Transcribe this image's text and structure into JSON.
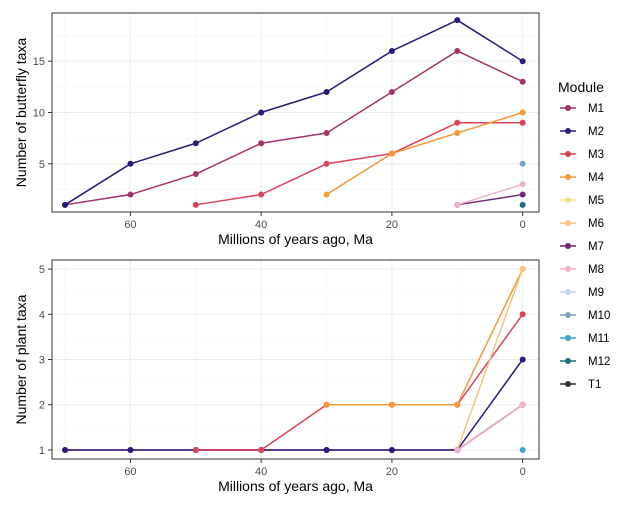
{
  "chart_data": [
    {
      "type": "line",
      "ylabel": "Number of butterfly taxa",
      "xlabel": "Millions of years ago, Ma",
      "xlim": [
        72,
        -2.5
      ],
      "ylim": [
        0.3,
        19.7
      ],
      "xticks": [
        60,
        40,
        20,
        0
      ],
      "yticks": [
        5,
        10,
        15
      ],
      "grid": true,
      "series": [
        {
          "name": "M1",
          "color": "#a3336a",
          "x": [
            70,
            60,
            50,
            40,
            30,
            20,
            10,
            0
          ],
          "y": [
            1,
            2,
            4,
            7,
            8,
            12,
            16,
            13
          ]
        },
        {
          "name": "M2",
          "color": "#2a1b7a",
          "x": [
            70,
            60,
            50,
            40,
            30,
            20,
            10,
            0
          ],
          "y": [
            1,
            5,
            7,
            10,
            12,
            16,
            19,
            15
          ]
        },
        {
          "name": "M3",
          "color": "#db4458",
          "x": [
            50,
            40,
            30,
            20,
            10,
            0
          ],
          "y": [
            1,
            2,
            5,
            6,
            9,
            9
          ]
        },
        {
          "name": "M4",
          "color": "#f5993a",
          "x": [
            30,
            20,
            10,
            0
          ],
          "y": [
            2,
            6,
            8,
            10
          ]
        },
        {
          "name": "M5",
          "color": "#f5dc86",
          "x": [],
          "y": []
        },
        {
          "name": "M6",
          "color": "#f7c283",
          "x": [],
          "y": []
        },
        {
          "name": "M7",
          "color": "#6e2a6e",
          "x": [
            10,
            0
          ],
          "y": [
            1,
            2
          ]
        },
        {
          "name": "M8",
          "color": "#f0b3cc",
          "x": [
            10,
            0
          ],
          "y": [
            1,
            3
          ]
        },
        {
          "name": "M9",
          "color": "#c5d5ee",
          "x": [],
          "y": []
        },
        {
          "name": "M10",
          "color": "#7b9fc2",
          "x": [
            0
          ],
          "y": [
            5
          ]
        },
        {
          "name": "M11",
          "color": "#3aa7c9",
          "x": [],
          "y": []
        },
        {
          "name": "M12",
          "color": "#1c6f7a",
          "x": [
            0
          ],
          "y": [
            1
          ]
        },
        {
          "name": "T1",
          "color": "#333333",
          "x": [],
          "y": []
        }
      ]
    },
    {
      "type": "line",
      "ylabel": "Number of plant taxa",
      "xlabel": "Millions of years ago, Ma",
      "xlim": [
        72,
        -2.5
      ],
      "ylim": [
        0.8,
        5.2
      ],
      "xticks": [
        60,
        40,
        20,
        0
      ],
      "yticks": [
        1,
        2,
        3,
        4,
        5
      ],
      "grid": true,
      "series": [
        {
          "name": "M1",
          "color": "#a3336a",
          "x": [
            70,
            60,
            50,
            40,
            30,
            20,
            10,
            0
          ],
          "y": [
            1,
            1,
            1,
            1,
            1,
            1,
            1,
            2
          ]
        },
        {
          "name": "M2",
          "color": "#2a1b7a",
          "x": [
            70,
            60,
            50,
            40,
            30,
            20,
            10,
            0
          ],
          "y": [
            1,
            1,
            1,
            1,
            1,
            1,
            1,
            3
          ]
        },
        {
          "name": "M3",
          "color": "#db4458",
          "x": [
            50,
            40,
            30,
            20,
            10,
            0
          ],
          "y": [
            1,
            1,
            2,
            2,
            2,
            4
          ]
        },
        {
          "name": "M4",
          "color": "#f5993a",
          "x": [
            30,
            20,
            10,
            0
          ],
          "y": [
            2,
            2,
            2,
            5
          ]
        },
        {
          "name": "M5",
          "color": "#f5dc86",
          "x": [],
          "y": []
        },
        {
          "name": "M6",
          "color": "#f7c283",
          "x": [
            10,
            0
          ],
          "y": [
            1,
            5
          ]
        },
        {
          "name": "M7",
          "color": "#6e2a6e",
          "x": [
            10,
            0
          ],
          "y": [
            1,
            2
          ]
        },
        {
          "name": "M8",
          "color": "#f0b3cc",
          "x": [
            10,
            0
          ],
          "y": [
            1,
            2
          ]
        },
        {
          "name": "M9",
          "color": "#c5d5ee",
          "x": [],
          "y": []
        },
        {
          "name": "M10",
          "color": "#7b9fc2",
          "x": [],
          "y": []
        },
        {
          "name": "M11",
          "color": "#3aa7c9",
          "x": [
            0
          ],
          "y": [
            1
          ]
        },
        {
          "name": "M12",
          "color": "#1c6f7a",
          "x": [],
          "y": []
        },
        {
          "name": "T1",
          "color": "#333333",
          "x": [],
          "y": []
        }
      ]
    }
  ],
  "legend": {
    "title": "Module",
    "placement": "right",
    "items": [
      {
        "label": "M1",
        "color": "#a3336a"
      },
      {
        "label": "M2",
        "color": "#2a1b7a"
      },
      {
        "label": "M3",
        "color": "#db4458"
      },
      {
        "label": "M4",
        "color": "#f5993a"
      },
      {
        "label": "M5",
        "color": "#f5dc86"
      },
      {
        "label": "M6",
        "color": "#f7c283"
      },
      {
        "label": "M7",
        "color": "#6e2a6e"
      },
      {
        "label": "M8",
        "color": "#f0b3cc"
      },
      {
        "label": "M9",
        "color": "#c5d5ee"
      },
      {
        "label": "M10",
        "color": "#7b9fc2"
      },
      {
        "label": "M11",
        "color": "#3aa7c9"
      },
      {
        "label": "M12",
        "color": "#1c6f7a"
      },
      {
        "label": "T1",
        "color": "#333333"
      }
    ]
  }
}
